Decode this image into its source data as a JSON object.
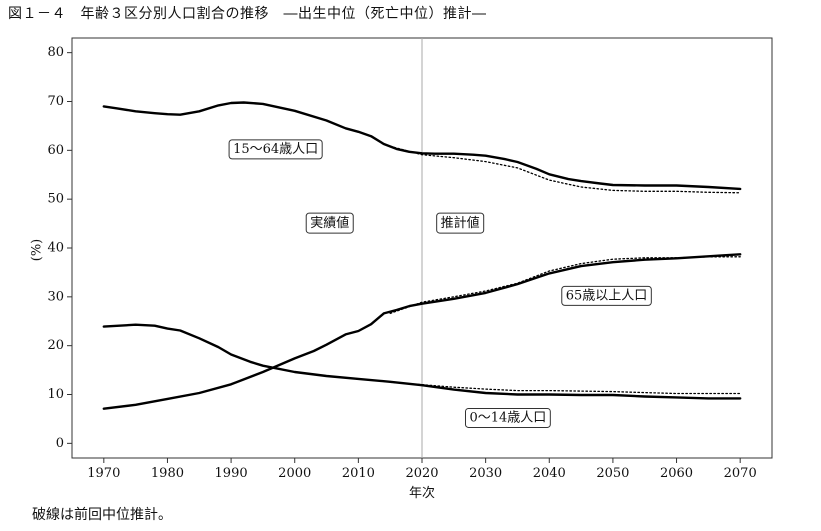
{
  "figure": {
    "title": "図１－４　年齢３区分別人口割合の推移　―出生中位（死亡中位）推計―",
    "footnote": "破線は前回中位推計。"
  },
  "chart_data": {
    "type": "line",
    "xlabel": "年次",
    "ylabel": "(%)",
    "xlim": [
      1965,
      2075
    ],
    "ylim": [
      -3,
      83
    ],
    "x_ticks": [
      1970,
      1980,
      1990,
      2000,
      2010,
      2020,
      2030,
      2040,
      2050,
      2060,
      2070
    ],
    "y_ticks": [
      0,
      10,
      20,
      30,
      40,
      50,
      60,
      70,
      80
    ],
    "divider_x": 2020,
    "region_labels": [
      {
        "text": "実績値",
        "x": 2005.5,
        "y": 45
      },
      {
        "text": "推計値",
        "x": 2026,
        "y": 45
      }
    ],
    "series_labels": [
      {
        "text": "15～64歳人口",
        "x": 1997,
        "y": 60.2
      },
      {
        "text": "65歳以上人口",
        "x": 2049,
        "y": 30.2
      },
      {
        "text": "0～14歳人口",
        "x": 2033.5,
        "y": 5.2
      }
    ],
    "series": [
      {
        "name": "15～64歳人口",
        "style": "solid",
        "x": [
          1970,
          1972,
          1975,
          1978,
          1980,
          1982,
          1985,
          1988,
          1990,
          1992,
          1995,
          2000,
          2005,
          2008,
          2010,
          2012,
          2014,
          2016,
          2018,
          2020,
          2022,
          2025,
          2028,
          2030,
          2033,
          2035,
          2038,
          2040,
          2043,
          2045,
          2048,
          2050,
          2055,
          2060,
          2065,
          2070
        ],
        "values": [
          69.0,
          68.6,
          68.0,
          67.6,
          67.4,
          67.3,
          68.0,
          69.2,
          69.7,
          69.8,
          69.5,
          68.1,
          66.1,
          64.5,
          63.8,
          62.9,
          61.3,
          60.3,
          59.7,
          59.4,
          59.3,
          59.3,
          59.1,
          58.9,
          58.2,
          57.6,
          56.2,
          55.1,
          54.1,
          53.7,
          53.2,
          52.9,
          52.8,
          52.8,
          52.5,
          52.1
        ]
      },
      {
        "name": "15～64歳人口（前回推計）",
        "style": "dotted",
        "x": [
          2015,
          2020,
          2025,
          2030,
          2035,
          2040,
          2045,
          2050,
          2055,
          2060,
          2065,
          2070
        ],
        "values": [
          60.8,
          59.1,
          58.5,
          57.7,
          56.4,
          53.9,
          52.5,
          51.8,
          51.6,
          51.6,
          51.4,
          51.3
        ]
      },
      {
        "name": "65歳以上人口",
        "style": "solid",
        "x": [
          1970,
          1975,
          1980,
          1985,
          1990,
          1995,
          2000,
          2003,
          2005,
          2008,
          2010,
          2012,
          2014,
          2016,
          2018,
          2020,
          2025,
          2030,
          2035,
          2040,
          2045,
          2050,
          2055,
          2060,
          2065,
          2070
        ],
        "values": [
          7.1,
          7.9,
          9.1,
          10.3,
          12.1,
          14.6,
          17.4,
          18.9,
          20.2,
          22.3,
          23.0,
          24.4,
          26.6,
          27.3,
          28.1,
          28.6,
          29.6,
          30.8,
          32.6,
          34.8,
          36.3,
          37.1,
          37.6,
          37.9,
          38.3,
          38.7
        ]
      },
      {
        "name": "65歳以上人口（前回推計）",
        "style": "dotted",
        "x": [
          2015,
          2020,
          2025,
          2030,
          2035,
          2040,
          2045,
          2050,
          2055,
          2060,
          2065,
          2070
        ],
        "values": [
          26.6,
          28.9,
          30.0,
          31.2,
          32.8,
          35.3,
          36.8,
          37.7,
          38.0,
          38.0,
          38.2,
          38.2
        ]
      },
      {
        "name": "0～14歳人口",
        "style": "solid",
        "x": [
          1970,
          1975,
          1978,
          1980,
          1982,
          1985,
          1988,
          1990,
          1993,
          1995,
          2000,
          2005,
          2010,
          2015,
          2020,
          2025,
          2030,
          2035,
          2040,
          2045,
          2050,
          2055,
          2060,
          2065,
          2070
        ],
        "values": [
          23.9,
          24.3,
          24.1,
          23.5,
          23.1,
          21.5,
          19.7,
          18.2,
          16.7,
          15.9,
          14.6,
          13.8,
          13.2,
          12.6,
          11.9,
          11.0,
          10.3,
          10.0,
          10.0,
          9.9,
          9.9,
          9.6,
          9.4,
          9.2,
          9.2
        ]
      },
      {
        "name": "0～14歳人口（前回推計）",
        "style": "dotted",
        "x": [
          2015,
          2020,
          2025,
          2030,
          2035,
          2040,
          2045,
          2050,
          2055,
          2060,
          2065,
          2070
        ],
        "values": [
          12.5,
          12.0,
          11.5,
          11.1,
          10.8,
          10.8,
          10.7,
          10.6,
          10.4,
          10.2,
          10.2,
          10.2
        ]
      }
    ]
  }
}
